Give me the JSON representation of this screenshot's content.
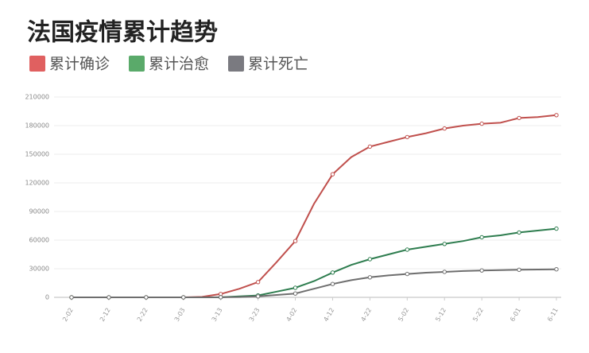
{
  "chart_data": {
    "type": "line",
    "title": "法国疫情累计趋势",
    "categories": [
      "2-02",
      null,
      "2-12",
      null,
      "2-22",
      null,
      "3-03",
      null,
      "3-13",
      null,
      "3-23",
      null,
      "4-02",
      null,
      "4-12",
      null,
      "4-22",
      null,
      "5-02",
      null,
      "5-12",
      null,
      "5-22",
      null,
      "6-01",
      null,
      "6-11"
    ],
    "series": [
      {
        "name": "累计确诊",
        "color": "#c0504d",
        "legend_color": "#e06060",
        "values": [
          0,
          0,
          0,
          0,
          0,
          0,
          0,
          500,
          3500,
          9000,
          16000,
          37000,
          59000,
          98000,
          129000,
          147000,
          158000,
          163000,
          168000,
          172000,
          177000,
          180000,
          182000,
          183000,
          188000,
          189000,
          191000
        ]
      },
      {
        "name": "累计治愈",
        "color": "#2e7d4f",
        "legend_color": "#5aaa6a",
        "values": [
          0,
          0,
          0,
          0,
          0,
          0,
          0,
          0,
          100,
          1000,
          2000,
          6000,
          10000,
          17000,
          26000,
          34000,
          40000,
          45000,
          50000,
          53000,
          56000,
          59000,
          63000,
          65000,
          68000,
          70000,
          72000
        ]
      },
      {
        "name": "累计死亡",
        "color": "#6e6e6e",
        "legend_color": "#7a7a80",
        "values": [
          0,
          0,
          0,
          0,
          0,
          0,
          0,
          0,
          100,
          300,
          1000,
          2500,
          4000,
          9000,
          14000,
          18000,
          21000,
          23000,
          24500,
          25800,
          26700,
          27600,
          28200,
          28600,
          28900,
          29200,
          29400
        ]
      }
    ],
    "ylim": [
      0,
      210000
    ],
    "yticks": [
      0,
      30000,
      60000,
      90000,
      120000,
      150000,
      180000,
      210000
    ],
    "grid": true
  }
}
